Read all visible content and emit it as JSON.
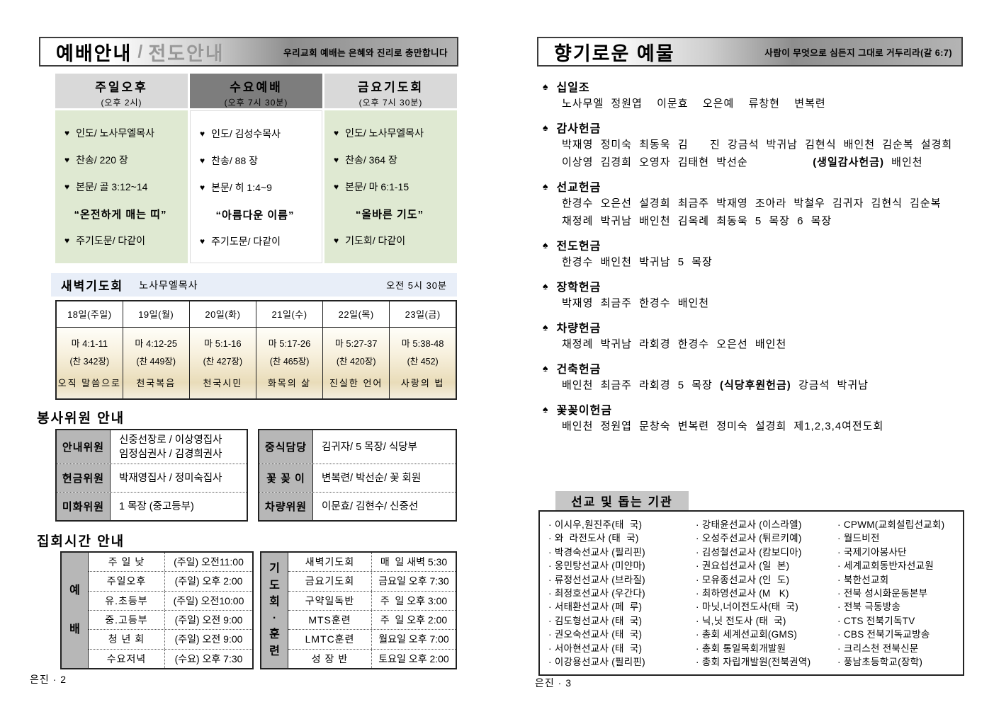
{
  "icons": {
    "heart": "♥",
    "spade": "♠",
    "bullet": "·"
  },
  "page_left": {
    "header": {
      "title": "예배안내",
      "separator": "/",
      "subtitle": "전도안내",
      "slogan": "우리교회 예배는 은혜와 진리로 충만합니다"
    },
    "services": [
      {
        "name": "주일오후",
        "time": "(오후 2시)",
        "style": "green",
        "lines": [
          "인도/ 노사무엘목사",
          "찬송/ 220 장",
          "본문/ 골 3:12~14"
        ],
        "sermon": "“온전하게 매는 띠”",
        "closing": "주기도문/ 다같이"
      },
      {
        "name": "수요예배",
        "time": "(오후 7시 30분)",
        "style": "white",
        "lines": [
          "인도/ 김성수목사",
          "찬송/ 88 장",
          "본문/ 히 1:4~9"
        ],
        "sermon": "“아름다운 이름”",
        "closing": "주기도문/ 다같이"
      },
      {
        "name": "금요기도회",
        "time": "(오후 7시 30분)",
        "style": "green",
        "lines": [
          "인도/ 노사무엘목사",
          "찬송/ 364 장",
          "본문/ 마 6:1-15"
        ],
        "sermon": "“올바른 기도”",
        "closing": "기도회/ 다같이"
      }
    ],
    "dawn": {
      "title": "새벽기도회",
      "leader": "노사무엘목사",
      "time": "오전 5시 30분",
      "days": [
        {
          "day": "18일(주일)",
          "verse": "마 4:1-11",
          "hymn": "(찬 342장)",
          "theme": "오직 말씀으로"
        },
        {
          "day": "19일(월)",
          "verse": "마 4:12-25",
          "hymn": "(찬 449장)",
          "theme": "천국복음"
        },
        {
          "day": "20일(화)",
          "verse": "마 5:1-16",
          "hymn": "(찬 427장)",
          "theme": "천국시민"
        },
        {
          "day": "21일(수)",
          "verse": "마 5:17-26",
          "hymn": "(찬 465장)",
          "theme": "화목의 삶"
        },
        {
          "day": "22일(목)",
          "verse": "마 5:27-37",
          "hymn": "(찬 420장)",
          "theme": "진실한 언어"
        },
        {
          "day": "23일(금)",
          "verse": "마 5:38-48",
          "hymn": "(찬 452)",
          "theme": "사랑의 법"
        }
      ]
    },
    "committees": {
      "title": "봉사위원 안내",
      "left": [
        {
          "label": "안내위원",
          "lines": [
            "신중선장로 / 이상영집사",
            "임정심권사 / 김경희권사"
          ]
        },
        {
          "label": "헌금위원",
          "lines": [
            "박재영집사 / 정미숙집사"
          ]
        },
        {
          "label": "미화위원",
          "lines": [
            "1 목장 (중고등부)"
          ]
        }
      ],
      "right": [
        {
          "label": "중식담당",
          "lines": [
            "김귀자/ 5 목장/ 식당부"
          ]
        },
        {
          "label": "꽃 꽂 이",
          "lines": [
            "변복련/ 박선순/ 꽃 회원"
          ]
        },
        {
          "label": "차량위원",
          "lines": [
            "이문효/ 김현수/ 신중선"
          ]
        }
      ]
    },
    "meetings": {
      "title": "집회시간 안내",
      "tables": [
        {
          "group": "예배",
          "rows": [
            {
              "name": "주 일 낮",
              "time": "(주일) 오전11:00"
            },
            {
              "name": "주일오후",
              "time": "(주일) 오후 2:00"
            },
            {
              "name": "유.초등부",
              "time": "(주일) 오전10:00"
            },
            {
              "name": "중.고등부",
              "time": "(주일) 오전 9:00"
            },
            {
              "name": "청 년 회",
              "time": "(주일) 오전 9:00"
            },
            {
              "name": "수요저녁",
              "time": "(수요) 오후 7:30"
            }
          ]
        },
        {
          "group": "기도회·훈련",
          "rows": [
            {
              "name": "새벽기도회",
              "time": "매  일 새벽 5:30"
            },
            {
              "name": "금요기도회",
              "time": "금요일 오후 7:30"
            },
            {
              "name": "구약일독반",
              "time": "주  일 오후 3:00"
            },
            {
              "name": "MTS훈련",
              "time": "주  일 오후 2:00"
            },
            {
              "name": "LMTC훈련",
              "time": "월요일 오후 7:00"
            },
            {
              "name": "성 장 반",
              "time": "토요일 오후 2:00"
            }
          ]
        }
      ]
    },
    "footer": "은진 · 2"
  },
  "page_right": {
    "header": {
      "title": "향기로운 예물",
      "slogan": "사람이 무엇으로 심든지 그대로 거두리라(갈 6:7)"
    },
    "offerings": [
      {
        "name": "십일조",
        "lines": [
          "노사무엘 정원엽  이문효  오은예  류창현  변복련"
        ]
      },
      {
        "name": "감사헌금",
        "lines": [
          "박재영 정미숙 최동욱 김   진 강금석 박귀남 김현식 배인천 김순복 설경희",
          "이상영 김경희 오영자 김태현 박선순         **(생일감사헌금)** 배인천"
        ]
      },
      {
        "name": "선교헌금",
        "lines": [
          "한경수 오은선 설경희 최금주 박재영 조아라 박철우 김귀자 김현식 김순복",
          "채정례 박귀남 배인천 김옥례 최동욱 5 목장 6 목장"
        ]
      },
      {
        "name": "전도헌금",
        "lines": [
          "한경수 배인천 박귀남 5 목장"
        ]
      },
      {
        "name": "장학헌금",
        "lines": [
          "박재영 최금주 한경수 배인천"
        ]
      },
      {
        "name": "차량헌금",
        "lines": [
          "채정례 박귀남 라회경 한경수 오은선 배인천"
        ]
      },
      {
        "name": "건축헌금",
        "lines": [
          "배인천 최금주 라회경 5 목장 **(식당후원헌금)** 강금석 박귀남"
        ]
      },
      {
        "name": "꽃꽂이헌금",
        "lines": [
          "배인천 정원엽 문창숙 변복련 정미숙 설경희 제1,2,3,4여전도회"
        ]
      }
    ],
    "missions": {
      "title": "선교 및 돕는 기관",
      "columns": [
        [
          "이시우,원진주(태  국)",
          "와  라전도사 (태  국)",
          "박경숙선교사 (필리핀)",
          "옹민탕선교사 (미얀마)",
          "류정선선교사 (브라질)",
          "최정호선교사 (우간다)",
          "서태환선교사 (페  루)",
          "김도형선교사 (태  국)",
          "권오숙선교사 (태  국)",
          "서아현선교사 (태  국)",
          "이강용선교사 (필리핀)"
        ],
        [
          "강태윤선교사 (이스라엘)",
          "오성주선교사 (튀르키예)",
          "김성철선교사 (캄보디아)",
          "권요섭선교사 (일  본)",
          "모유종선교사 (인  도)",
          "최하영선교사 (M   K)",
          "마닛,너이전도사(태  국)",
          "닉,닛 전도사 (태  국)",
          "총회 세계선교회(GMS)",
          "총회 통일목회개발원",
          "총회 자립개발원(전북권역)"
        ],
        [
          "CPWM(교회설립선교회)",
          "월드비전",
          "국제기아봉사단",
          "세계교회동반자선교원",
          "북한선교회",
          "전북 성시화운동본부",
          "전북 극동방송",
          "CTS 전북기독TV",
          "CBS 전북기독교방송",
          "크리스천 전북신문",
          "풍남초등학교(장학)"
        ]
      ]
    },
    "footer": "은진 · 3"
  }
}
